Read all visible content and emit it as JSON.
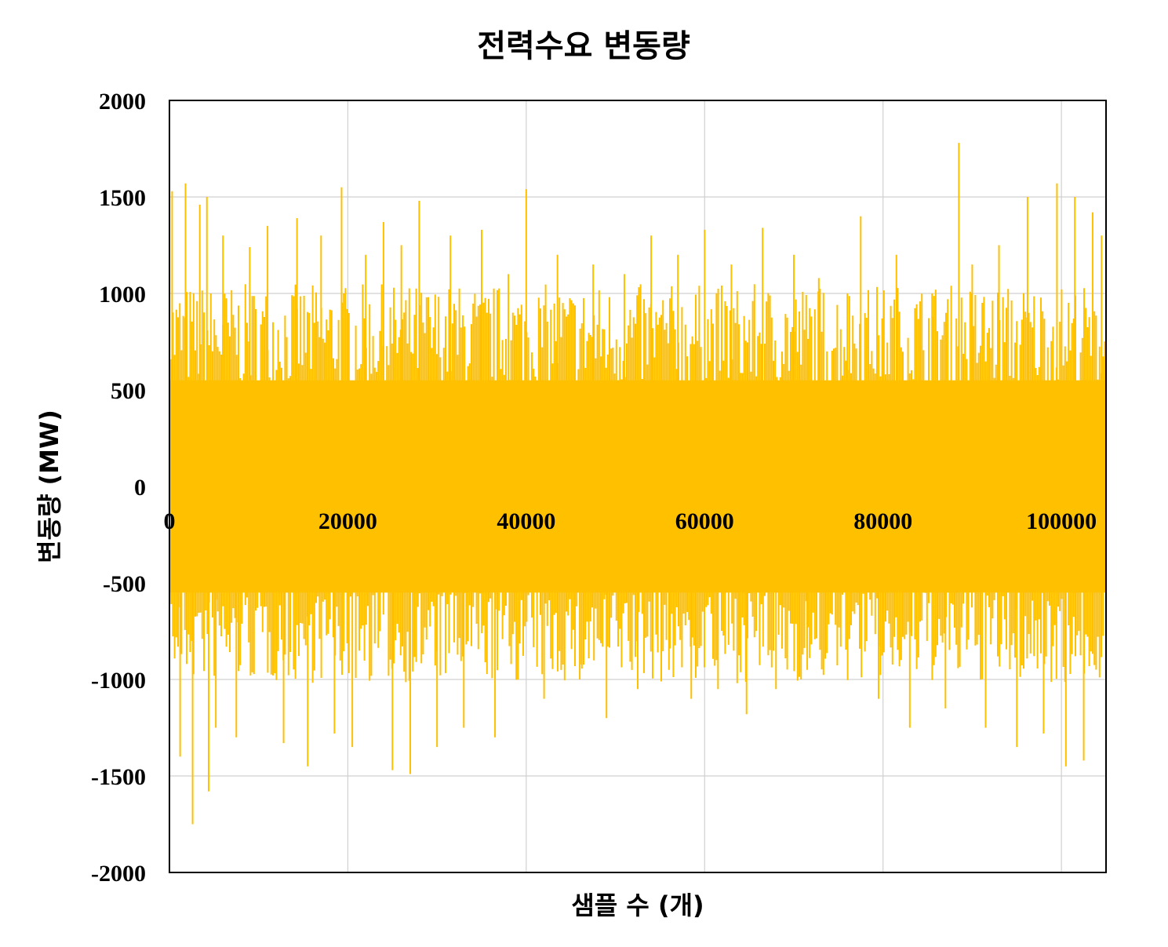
{
  "chart_data": {
    "type": "line",
    "title": "전력수요 변동량",
    "xlabel": "샘플 수 (개)",
    "ylabel": "변동량 (MW)",
    "xlim": [
      0,
      105000
    ],
    "ylim": [
      -2000,
      2000
    ],
    "x_ticks": [
      0,
      20000,
      40000,
      60000,
      80000,
      100000
    ],
    "x_tick_labels": [
      "0",
      "20000",
      "40000",
      "60000",
      "80000",
      "100000"
    ],
    "y_ticks": [
      2000,
      1500,
      1000,
      500,
      0,
      -500,
      -1000,
      -1500,
      -2000
    ],
    "y_tick_labels": [
      "2000",
      "1500",
      "1000",
      "500",
      "0",
      "-500",
      "-1000",
      "-1500",
      "-2000"
    ],
    "grid": true,
    "legend": "none",
    "series": [
      {
        "color": "#FFC000",
        "core_range": [
          -550,
          550
        ],
        "x": [
          300,
          1200,
          1800,
          2600,
          3400,
          4200,
          4400,
          5200,
          6000,
          7500,
          9000,
          11000,
          12800,
          14300,
          15500,
          17000,
          18500,
          19300,
          20500,
          22000,
          24000,
          25000,
          26000,
          27000,
          28000,
          30000,
          31500,
          33000,
          35000,
          36500,
          38000,
          40000,
          42000,
          43500,
          46000,
          47500,
          49000,
          51000,
          52500,
          54000,
          56000,
          57000,
          58500,
          60000,
          61500,
          63000,
          64700,
          66500,
          68000,
          70000,
          71500,
          72800,
          73500,
          74500,
          76000,
          77500,
          79500,
          81500,
          83000,
          85500,
          87000,
          88500,
          90000,
          91500,
          93000,
          95000,
          96200,
          98000,
          99500,
          100500,
          101500,
          102500,
          103500,
          104500
        ],
        "y": [
          1530,
          -1400,
          1570,
          -1750,
          1460,
          1500,
          -1580,
          -1250,
          1300,
          -1300,
          1240,
          1350,
          -1330,
          1390,
          -1450,
          1300,
          -1280,
          1550,
          -1350,
          1200,
          1370,
          -1470,
          1250,
          -1490,
          1480,
          -1350,
          1300,
          -1250,
          1330,
          -1300,
          1100,
          1540,
          -1100,
          1200,
          -1000,
          1150,
          -1200,
          1100,
          -1050,
          1300,
          -950,
          1200,
          -1100,
          1330,
          -1050,
          1150,
          -1180,
          1340,
          -1050,
          1200,
          -950,
          1080,
          380,
          -430,
          1000,
          1400,
          -1100,
          1200,
          -1250,
          1000,
          -1150,
          1780,
          1150,
          -1250,
          1250,
          -1350,
          1500,
          -1280,
          1570,
          -1450,
          1500,
          -1420,
          1420,
          1300
        ]
      }
    ]
  }
}
